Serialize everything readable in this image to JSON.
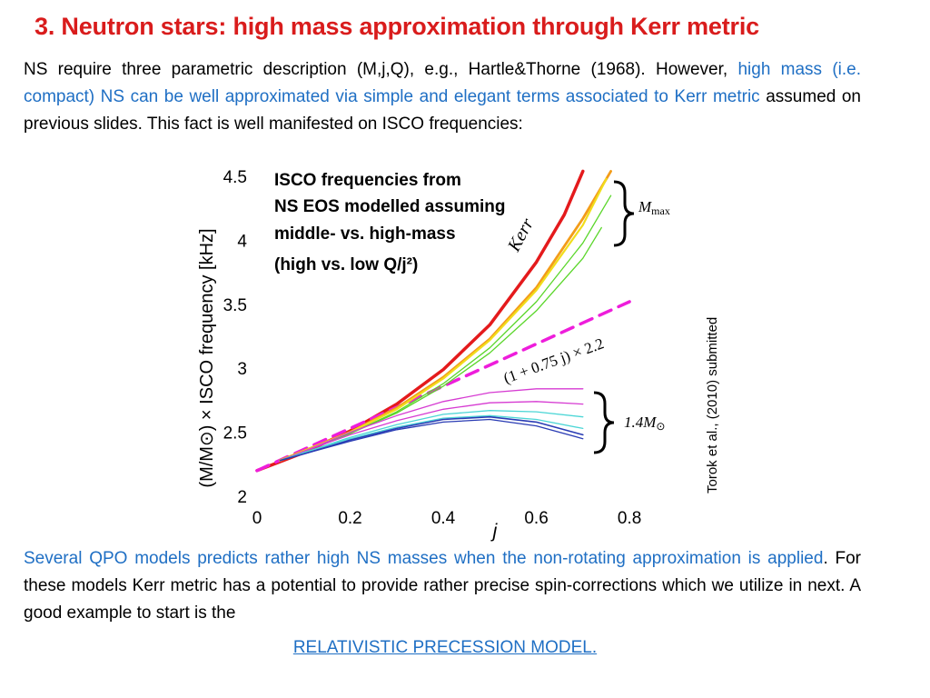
{
  "slide": {
    "title": "3. Neutron stars: high mass approximation through Kerr metric",
    "intro": {
      "text_a": "NS require three parametric description (M,j,Q), e.g., Hartle&Thorne (1968). However,",
      "text_blue": "high mass (i.e. compact) NS can be well approximated via simple and elegant terms associated to Kerr metric",
      "text_b": "assumed on previous slides. This fact is well manifested on ISCO frequencies:"
    },
    "outro": {
      "text_blue": "Several QPO models predicts rather high NS masses when the non-rotating approximation is applied",
      "text_b": ". For these models Kerr metric has a potential to provide rather precise spin-corrections which we utilize in next. A good example to start is the"
    },
    "link": "RELATIVISTIC PRECESSION MODEL.",
    "citation": "Torok et al., (2010) submitted"
  },
  "chart_data": {
    "type": "line",
    "title_lines": [
      "ISCO frequencies from",
      "NS EOS modelled assuming",
      "middle- vs. high-mass",
      "(high vs. low Q/j²)"
    ],
    "xlabel": "j",
    "ylabel": "(M/M⊙) × ISCO frequency [kHz]",
    "xlim": [
      0,
      0.95
    ],
    "ylim": [
      2,
      4.6
    ],
    "xticks": [
      0,
      0.2,
      0.4,
      0.6,
      0.8
    ],
    "xtick_labels": [
      "0",
      "0.2",
      "0.4",
      "0.6",
      "0.8"
    ],
    "yticks": [
      2,
      2.5,
      3,
      3.5,
      4,
      4.5
    ],
    "ytick_labels": [
      "2",
      "2.5",
      "3",
      "3.5",
      "4",
      "4.5"
    ],
    "colors": {
      "kerr": "#e41a1c",
      "linear": "#ee1ddb",
      "high_mass_orange": "#f39c1a",
      "high_mass_yellow": "#f1dd1b",
      "high_mass_green": "#5ad62a",
      "low_mass_magenta": "#d63bd2",
      "low_mass_cyan": "#4cd6d6",
      "low_mass_blue": "#2a3cb4"
    },
    "annotations": {
      "kerr": "Kerr",
      "linear": "(1 + 0.75 j) × 2.2",
      "mmax_main": "M",
      "mmax_sub": "max",
      "m14_main": "1.4M",
      "m14_sub": "⊙"
    },
    "series": [
      {
        "role": "kerr",
        "color": "#e41a1c",
        "width": 3.5,
        "dash": "",
        "x": [
          0,
          0.1,
          0.2,
          0.3,
          0.4,
          0.5,
          0.6,
          0.66,
          0.7
        ],
        "y": [
          2.2,
          2.34,
          2.51,
          2.72,
          2.99,
          3.34,
          3.83,
          4.2,
          4.54
        ]
      },
      {
        "role": "linear",
        "color": "#ee1ddb",
        "width": 3.5,
        "dash": "14,9",
        "x": [
          0,
          0.8
        ],
        "y": [
          2.2,
          3.52
        ]
      },
      {
        "role": "high-mass",
        "color": "#f39c1a",
        "width": 2.8,
        "dash": "",
        "x": [
          0.05,
          0.2,
          0.3,
          0.4,
          0.5,
          0.6,
          0.7,
          0.76
        ],
        "y": [
          2.28,
          2.5,
          2.69,
          2.93,
          3.23,
          3.63,
          4.17,
          4.54
        ]
      },
      {
        "role": "high-mass",
        "color": "#f1dd1b",
        "width": 2.2,
        "dash": "",
        "x": [
          0.05,
          0.2,
          0.3,
          0.4,
          0.5,
          0.6,
          0.7,
          0.75
        ],
        "y": [
          2.28,
          2.5,
          2.68,
          2.92,
          3.22,
          3.61,
          4.12,
          4.48
        ]
      },
      {
        "role": "high-mass",
        "color": "#5ad62a",
        "width": 1.3,
        "dash": "",
        "x": [
          0.05,
          0.2,
          0.3,
          0.4,
          0.5,
          0.6,
          0.7,
          0.76
        ],
        "y": [
          2.28,
          2.49,
          2.66,
          2.88,
          3.16,
          3.52,
          3.98,
          4.35
        ]
      },
      {
        "role": "high-mass",
        "color": "#5ad62a",
        "width": 1.3,
        "dash": "",
        "x": [
          0.05,
          0.2,
          0.3,
          0.4,
          0.5,
          0.6,
          0.7,
          0.74
        ],
        "y": [
          2.28,
          2.49,
          2.65,
          2.86,
          3.12,
          3.45,
          3.86,
          4.1
        ]
      },
      {
        "role": "low-mass",
        "color": "#d63bd2",
        "width": 1.3,
        "dash": "",
        "x": [
          0.05,
          0.1,
          0.2,
          0.3,
          0.4,
          0.5,
          0.6,
          0.7
        ],
        "y": [
          2.28,
          2.35,
          2.5,
          2.63,
          2.74,
          2.81,
          2.84,
          2.84
        ]
      },
      {
        "role": "low-mass",
        "color": "#d63bd2",
        "width": 1.3,
        "dash": "",
        "x": [
          0.05,
          0.1,
          0.2,
          0.3,
          0.4,
          0.5,
          0.6,
          0.7
        ],
        "y": [
          2.28,
          2.35,
          2.48,
          2.59,
          2.68,
          2.73,
          2.74,
          2.72
        ]
      },
      {
        "role": "low-mass",
        "color": "#4cd6d6",
        "width": 1.3,
        "dash": "",
        "x": [
          0.05,
          0.1,
          0.2,
          0.3,
          0.4,
          0.5,
          0.6,
          0.7
        ],
        "y": [
          2.28,
          2.34,
          2.46,
          2.56,
          2.64,
          2.67,
          2.66,
          2.62
        ]
      },
      {
        "role": "low-mass",
        "color": "#4cd6d6",
        "width": 1.3,
        "dash": "",
        "x": [
          0.05,
          0.1,
          0.2,
          0.3,
          0.4,
          0.5,
          0.6,
          0.7
        ],
        "y": [
          2.28,
          2.34,
          2.45,
          2.54,
          2.61,
          2.63,
          2.6,
          2.53
        ]
      },
      {
        "role": "low-mass",
        "color": "#2a3cb4",
        "width": 1.6,
        "dash": "",
        "x": [
          0.05,
          0.1,
          0.2,
          0.3,
          0.4,
          0.5,
          0.6,
          0.7
        ],
        "y": [
          2.28,
          2.33,
          2.44,
          2.53,
          2.6,
          2.62,
          2.58,
          2.48
        ]
      },
      {
        "role": "low-mass",
        "color": "#2a3cb4",
        "width": 1.3,
        "dash": "",
        "x": [
          0.05,
          0.1,
          0.2,
          0.3,
          0.4,
          0.5,
          0.6,
          0.7
        ],
        "y": [
          2.28,
          2.33,
          2.43,
          2.52,
          2.58,
          2.6,
          2.55,
          2.45
        ]
      }
    ]
  }
}
